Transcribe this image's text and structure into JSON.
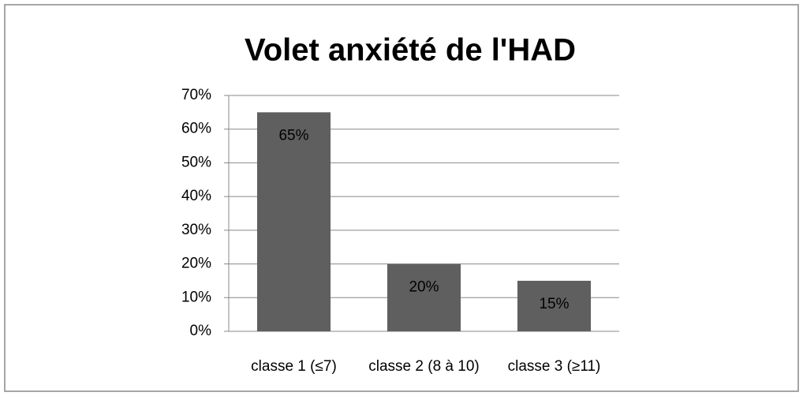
{
  "chart_data": {
    "type": "bar",
    "title": "Volet anxiété de l'HAD",
    "categories": [
      "classe 1 (≤7)",
      "classe 2 (8 à 10)",
      "classe 3 (≥11)"
    ],
    "values": [
      65,
      20,
      15
    ],
    "value_labels": [
      "65%",
      "20%",
      "15%"
    ],
    "color": "#5f5f5f",
    "ylim": [
      0,
      70
    ],
    "yticks": [
      {
        "value": 0,
        "label": "0%"
      },
      {
        "value": 10,
        "label": "10%"
      },
      {
        "value": 20,
        "label": "20%"
      },
      {
        "value": 30,
        "label": "30%"
      },
      {
        "value": 40,
        "label": "40%"
      },
      {
        "value": 50,
        "label": "50%"
      },
      {
        "value": 60,
        "label": "60%"
      },
      {
        "value": 70,
        "label": "70%"
      }
    ],
    "grid": true
  }
}
